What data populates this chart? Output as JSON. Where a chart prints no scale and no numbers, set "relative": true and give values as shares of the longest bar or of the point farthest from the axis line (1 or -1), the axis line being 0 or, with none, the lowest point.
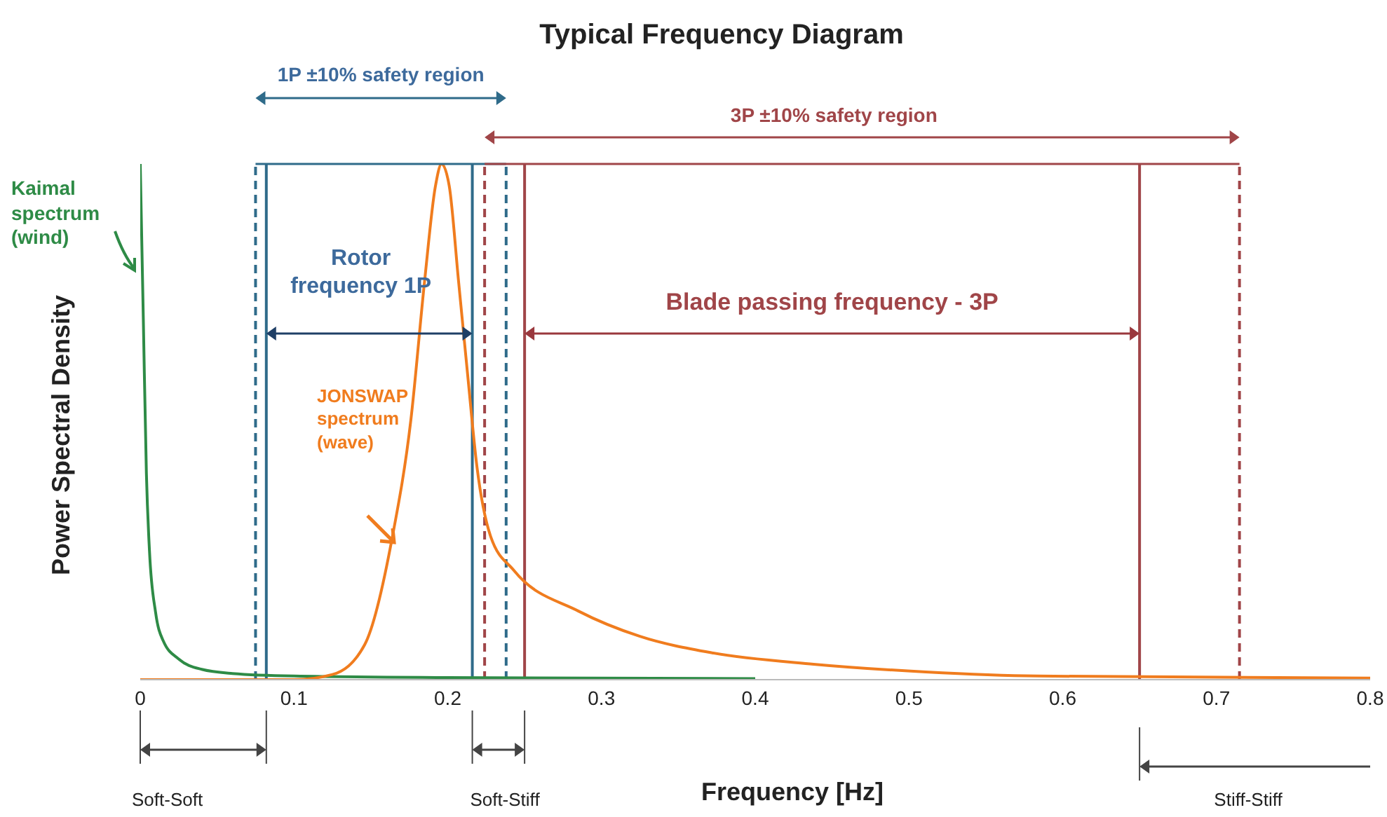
{
  "chart_data": {
    "type": "line",
    "title": "Typical Frequency Diagram",
    "xlabel": "Frequency [Hz]",
    "ylabel": "Power Spectral Density",
    "relative": true,
    "xlim": [
      0,
      0.8
    ],
    "xticks": [
      0,
      0.1,
      0.2,
      0.3,
      0.4,
      0.5,
      0.6,
      0.7,
      0.8
    ],
    "grid": false,
    "legend": false,
    "marker": "none",
    "line_style": "solid",
    "series": [
      {
        "color": "#2e8b46",
        "x": [
          0,
          0.002,
          0.004,
          0.006,
          0.01,
          0.015,
          0.025,
          0.04,
          0.06,
          0.1,
          0.2,
          0.4
        ],
        "values": [
          1,
          0.7,
          0.4,
          0.25,
          0.13,
          0.075,
          0.04,
          0.02,
          0.012,
          0.007,
          0.004,
          0.002
        ]
      },
      {
        "color": "#f07c1e",
        "x": [
          0,
          0.1,
          0.125,
          0.146,
          0.164,
          0.176,
          0.185,
          0.192,
          0.196,
          0.201,
          0.207,
          0.213,
          0.219,
          0.228,
          0.243,
          0.285,
          0.325,
          0.372,
          0.438,
          0.511,
          0.584,
          0.8
        ],
        "values": [
          0,
          0,
          0.01,
          0.068,
          0.277,
          0.503,
          0.774,
          0.957,
          1,
          0.957,
          0.774,
          0.59,
          0.413,
          0.277,
          0.212,
          0.133,
          0.084,
          0.052,
          0.03,
          0.015,
          0.007,
          0.003
        ]
      }
    ],
    "ref_lines": [
      {
        "axis": "x",
        "value": 0.075,
        "color": "#2f6b8a",
        "line_style": "dashed"
      },
      {
        "axis": "x",
        "value": 0.082,
        "color": "#2f6b8a",
        "line_style": "solid"
      },
      {
        "axis": "x",
        "value": 0.216,
        "color": "#2f6b8a",
        "line_style": "solid"
      },
      {
        "axis": "x",
        "value": 0.238,
        "color": "#2f6b8a",
        "line_style": "dashed"
      },
      {
        "axis": "x",
        "value": 0.224,
        "color": "#a04548",
        "line_style": "dashed"
      },
      {
        "axis": "x",
        "value": 0.25,
        "color": "#a04548",
        "line_style": "solid"
      },
      {
        "axis": "x",
        "value": 0.65,
        "color": "#a04548",
        "line_style": "solid"
      },
      {
        "axis": "x",
        "value": 0.715,
        "color": "#a04548",
        "line_style": "dashed"
      }
    ],
    "annotations": [
      "1P  ±10% safety region",
      "3P  ±10% safety region",
      "Rotor frequency 1P",
      "Blade passing frequency - 3P",
      "Kaimal spectrum (wind)",
      "JONSWAP spectrum (wave)",
      "Soft-Soft",
      "Soft-Stiff",
      "Stiff-Stiff"
    ]
  }
}
